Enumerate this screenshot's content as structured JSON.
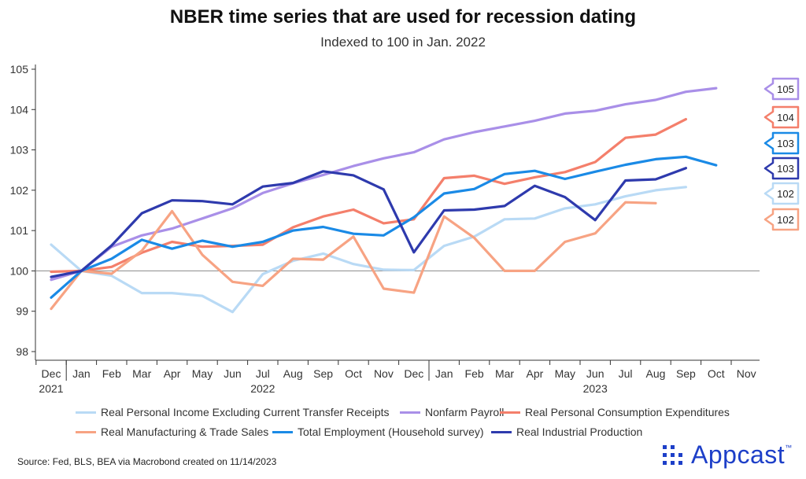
{
  "title": "NBER time series that are used for recession dating",
  "subtitle": "Indexed to 100 in Jan. 2022",
  "source": "Source: Fed, BLS, BEA via Macrobond created on 11/14/2023",
  "brand": {
    "name": "Appcast",
    "mark": "™",
    "color": "#1d3fc8"
  },
  "chart_data": {
    "type": "line",
    "ylim": [
      98,
      105
    ],
    "yticks": [
      "98",
      "99",
      "100",
      "101",
      "102",
      "103",
      "104",
      "105"
    ],
    "reference_line": 100,
    "x": [
      "Dec 2021",
      "Jan 2022",
      "Feb 2022",
      "Mar 2022",
      "Apr 2022",
      "May 2022",
      "Jun 2022",
      "Jul 2022",
      "Aug 2022",
      "Sep 2022",
      "Oct 2022",
      "Nov 2022",
      "Dec 2022",
      "Jan 2023",
      "Feb 2023",
      "Mar 2023",
      "Apr 2023",
      "May 2023",
      "Jun 2023",
      "Jul 2023",
      "Aug 2023",
      "Sep 2023",
      "Oct 2023",
      "Nov 2023"
    ],
    "xtick_labels": [
      "Dec",
      "Jan",
      "Feb",
      "Mar",
      "Apr",
      "May",
      "Jun",
      "Jul",
      "Aug",
      "Sep",
      "Oct",
      "Nov",
      "Dec",
      "Jan",
      "Feb",
      "Mar",
      "Apr",
      "May",
      "Jun",
      "Jul",
      "Aug",
      "Sep",
      "Oct",
      "Nov"
    ],
    "year_labels": [
      "2021",
      "2022",
      "2023"
    ],
    "grid": false,
    "legend_position": "bottom",
    "series": [
      {
        "name": "Real Personal Income Excluding Current Transfer Receipts",
        "color": "#b9daf5",
        "values": [
          100.65,
          100.0,
          99.88,
          99.45,
          99.45,
          99.38,
          98.98,
          99.92,
          100.25,
          100.43,
          100.17,
          100.03,
          100.02,
          100.62,
          100.85,
          101.28,
          101.3,
          101.55,
          101.65,
          101.85,
          102.0,
          102.08,
          null,
          null
        ],
        "end_label": "102"
      },
      {
        "name": "Nonfarm Payroll",
        "color": "#a98fe8",
        "values": [
          99.78,
          100.0,
          100.6,
          100.88,
          101.05,
          101.3,
          101.55,
          101.93,
          102.17,
          102.38,
          102.6,
          102.79,
          102.94,
          103.26,
          103.44,
          103.58,
          103.72,
          103.9,
          103.97,
          104.13,
          104.24,
          104.44,
          104.53,
          null
        ],
        "end_label": "105"
      },
      {
        "name": "Real Personal Consumption Expenditures",
        "color": "#f47f6b",
        "values": [
          99.98,
          100.0,
          100.1,
          100.45,
          100.72,
          100.6,
          100.62,
          100.65,
          101.08,
          101.35,
          101.52,
          101.18,
          101.28,
          102.3,
          102.36,
          102.16,
          102.32,
          102.45,
          102.7,
          103.3,
          103.38,
          103.76,
          null,
          null
        ],
        "end_label": "104"
      },
      {
        "name": "Real Manufacturing & Trade Sales",
        "color": "#f7a383",
        "values": [
          99.06,
          100.0,
          99.93,
          100.5,
          101.48,
          100.4,
          99.73,
          99.63,
          100.3,
          100.28,
          100.85,
          99.56,
          99.46,
          101.35,
          100.82,
          100.0,
          100.0,
          100.72,
          100.93,
          101.7,
          101.68,
          null,
          null,
          null
        ],
        "end_label": "102"
      },
      {
        "name": "Total Employment (Household survey)",
        "color": "#1a8ae6",
        "values": [
          99.34,
          100.0,
          100.3,
          100.77,
          100.55,
          100.75,
          100.6,
          100.72,
          101.0,
          101.09,
          100.92,
          100.88,
          101.33,
          101.92,
          102.03,
          102.4,
          102.48,
          102.28,
          102.46,
          102.63,
          102.77,
          102.83,
          102.62,
          null
        ],
        "end_label": "103"
      },
      {
        "name": "Real Industrial Production",
        "color": "#2e3aad",
        "values": [
          99.85,
          100.0,
          100.63,
          101.43,
          101.75,
          101.73,
          101.65,
          102.09,
          102.18,
          102.47,
          102.37,
          102.02,
          100.46,
          101.5,
          101.52,
          101.61,
          102.11,
          101.83,
          101.26,
          102.24,
          102.27,
          102.55,
          null,
          null
        ],
        "end_label": "103"
      }
    ]
  }
}
